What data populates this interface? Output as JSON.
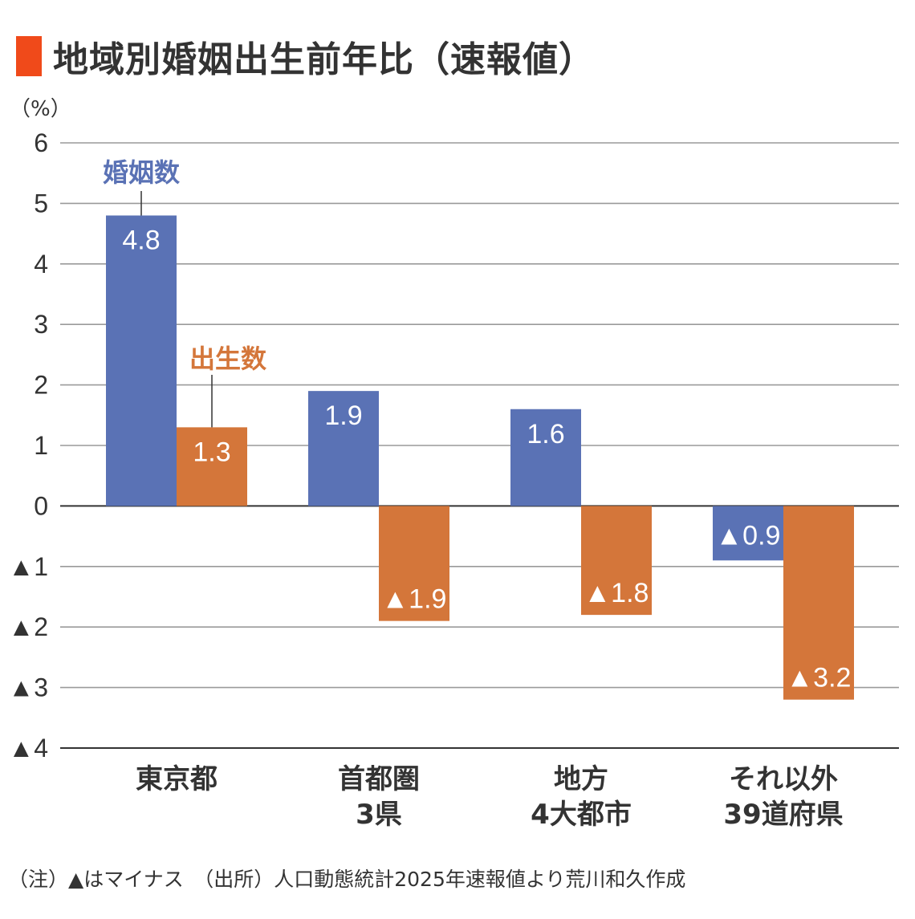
{
  "header": {
    "title": "地域別婚姻出生前年比（速報値）",
    "title_mark_color": "#f04a1a",
    "unit": "（%）"
  },
  "footnote": "（注）▲はマイナス　（出所）人口動態統計2025年速報値より荒川和久作成",
  "chart_data": {
    "type": "bar",
    "title": "地域別婚姻出生前年比（速報値）",
    "xlabel": "",
    "ylabel": "（%）",
    "ylim": [
      -4,
      6
    ],
    "yticks": [
      6,
      5,
      4,
      3,
      2,
      1,
      0,
      -1,
      -2,
      -3,
      -4
    ],
    "ytick_labels": [
      "6",
      "5",
      "4",
      "3",
      "2",
      "1",
      "0",
      "▲1",
      "▲2",
      "▲3",
      "▲4"
    ],
    "grid": true,
    "categories": [
      {
        "line1": "東京都",
        "line2": ""
      },
      {
        "line1": "首都圏",
        "line2": "3県"
      },
      {
        "line1": "地方",
        "line2": "4大都市"
      },
      {
        "line1": "それ以外",
        "line2": "39道府県"
      }
    ],
    "series": [
      {
        "name": "婚姻数",
        "color": "#5a72b5",
        "values": [
          4.8,
          1.9,
          1.6,
          -0.9
        ],
        "labels": [
          "4.8",
          "1.9",
          "1.6",
          "▲0.9"
        ]
      },
      {
        "name": "出生数",
        "color": "#d4763a",
        "values": [
          1.3,
          -1.9,
          -1.8,
          -3.2
        ],
        "labels": [
          "1.3",
          "▲1.9",
          "▲1.8",
          "▲3.2"
        ]
      }
    ],
    "legend": "inline callouts on first category"
  }
}
